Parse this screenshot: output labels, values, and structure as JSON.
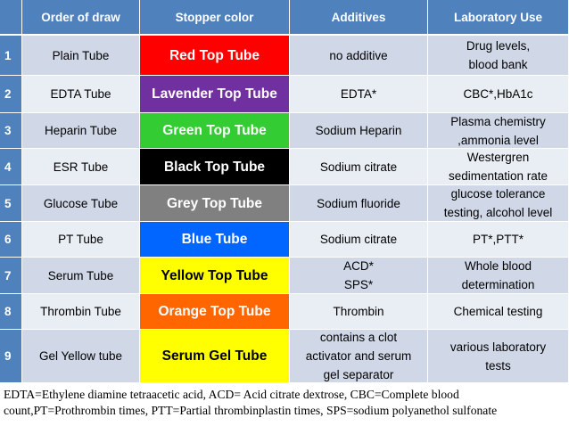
{
  "table": {
    "header": [
      "Order of draw",
      "Stopper color",
      "Additives",
      "Laboratory Use"
    ],
    "rows": [
      {
        "number": "1",
        "order": "Plain Tube",
        "stopper": "Red Top Tube",
        "color": "#ff0000",
        "text_color": "#ffffff",
        "additives": [
          "no additive"
        ],
        "use": [
          "Drug levels,",
          "blood bank"
        ]
      },
      {
        "number": "2",
        "order": "EDTA Tube",
        "stopper": "Lavender Top Tube",
        "color": "#7030a0",
        "text_color": "#ffffff",
        "additives": [
          "EDTA*"
        ],
        "use": [
          "CBC*,HbA1c"
        ]
      },
      {
        "number": "3",
        "order": "Heparin Tube",
        "stopper": "Green Top Tube",
        "color": "#33cc33",
        "text_color": "#ffffff",
        "additives": [
          "Sodium Heparin"
        ],
        "use": [
          "Plasma chemistry",
          ",ammonia level"
        ]
      },
      {
        "number": "4",
        "order": "ESR Tube",
        "stopper": "Black Top Tube",
        "color": "#000000",
        "text_color": "#ffffff",
        "additives": [
          "Sodium citrate"
        ],
        "use": [
          "Westergren",
          "sedimentation rate"
        ]
      },
      {
        "number": "5",
        "order": "Glucose Tube",
        "stopper": "Grey Top Tube",
        "color": "#808080",
        "text_color": "#ffffff",
        "additives": [
          "Sodium fluoride"
        ],
        "use": [
          "glucose tolerance",
          "testing, alcohol level"
        ]
      },
      {
        "number": "6",
        "order": "PT Tube",
        "stopper": "Blue Tube",
        "color": "#0066ff",
        "text_color": "#ffffff",
        "additives": [
          "Sodium citrate"
        ],
        "use": [
          "PT*,PTT*"
        ]
      },
      {
        "number": "7",
        "order": "Serum Tube",
        "stopper": "Yellow Top Tube",
        "color": "#ffff00",
        "text_color": "#000000",
        "additives": [
          "ACD*",
          "SPS*"
        ],
        "use": [
          "Whole blood",
          "determination"
        ]
      },
      {
        "number": "8",
        "order": "Thrombin Tube",
        "stopper": "Orange Top Tube",
        "color": "#ff6600",
        "text_color": "#ffffff",
        "additives": [
          "Thrombin"
        ],
        "use": [
          "Chemical testing"
        ]
      },
      {
        "number": "9",
        "order": "Gel Yellow tube",
        "stopper": "Serum Gel Tube",
        "color": "#ffff00",
        "text_color": "#000000",
        "additives": [
          "contains a clot",
          "activator and serum",
          "gel separator"
        ],
        "use": [
          "various laboratory",
          "tests"
        ]
      }
    ]
  },
  "footnote": [
    "EDTA=Ethylene diamine tetraacetic acid, ACD= Acid citrate dextrose, CBC=Complete blood",
    "count,PT=Prothrombin times, PTT=Partial thrombinplastin times, SPS=sodium polyanethol sulfonate"
  ]
}
